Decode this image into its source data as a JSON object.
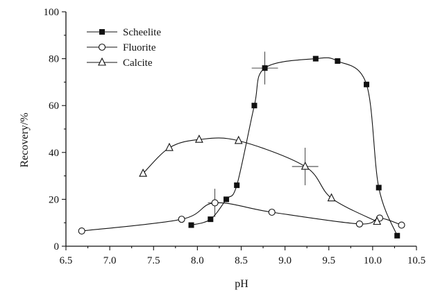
{
  "chart_data": {
    "type": "scatter",
    "xlabel": "pH",
    "ylabel": "Recovery/%",
    "xlim": [
      6.5,
      10.5
    ],
    "ylim": [
      0,
      100
    ],
    "xticks": [
      "6.5",
      "7.0",
      "7.5",
      "8.0",
      "8.5",
      "9.0",
      "9.5",
      "10.0",
      "10.5"
    ],
    "yticks": [
      "0",
      "20",
      "40",
      "60",
      "80",
      "100"
    ],
    "grid": false,
    "legend_position": "top-left",
    "series": [
      {
        "name": "Scheelite",
        "marker": "filled-square",
        "x": [
          7.93,
          8.15,
          8.33,
          8.45,
          8.65,
          8.77,
          9.35,
          9.6,
          9.93,
          10.07,
          10.28
        ],
        "y": [
          9,
          11.5,
          20,
          26,
          60,
          76,
          80,
          79,
          69,
          25,
          4.5
        ]
      },
      {
        "name": "Fluorite",
        "marker": "open-circle",
        "x": [
          6.68,
          7.82,
          8.2,
          8.85,
          9.85,
          10.08,
          10.33
        ],
        "y": [
          6.5,
          11.5,
          18.5,
          14.5,
          9.5,
          12,
          9
        ]
      },
      {
        "name": "Calcite",
        "marker": "open-triangle",
        "x": [
          7.38,
          7.68,
          8.02,
          8.47,
          9.23,
          9.53,
          10.05
        ],
        "y": [
          31,
          42,
          45.5,
          45,
          34,
          20.5,
          10.5
        ]
      }
    ],
    "error_crosses": [
      {
        "x": 8.77,
        "y": 76,
        "dx": 0.15,
        "dy": 7
      },
      {
        "x": 9.23,
        "y": 34,
        "dx": 0.15,
        "dy": 8
      },
      {
        "x": 8.2,
        "y": 18.5,
        "dx": 0.08,
        "dy": 6
      }
    ]
  }
}
